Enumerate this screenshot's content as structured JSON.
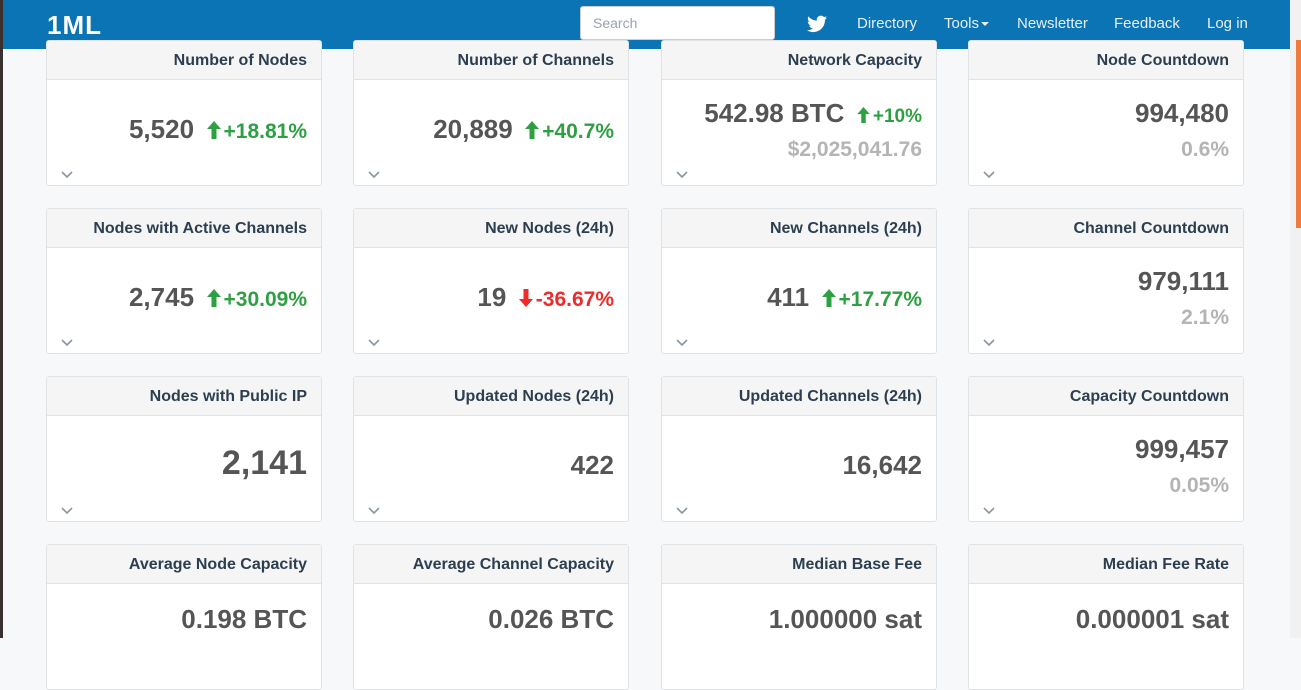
{
  "nav": {
    "brand": "1ML",
    "search_placeholder": "Search",
    "links": {
      "directory": "Directory",
      "tools": "Tools",
      "newsletter": "Newsletter",
      "feedback": "Feedback",
      "login": "Log in"
    }
  },
  "colors": {
    "navbar": "#0a74b5",
    "up": "#2ea043",
    "down": "#ee2b2b",
    "muted": "#b4b4b4"
  },
  "cards": {
    "number_of_nodes": {
      "title": "Number of Nodes",
      "value": "5,520",
      "change": "+18.81%",
      "direction": "up"
    },
    "number_of_channels": {
      "title": "Number of Channels",
      "value": "20,889",
      "change": "+40.7%",
      "direction": "up"
    },
    "network_capacity": {
      "title": "Network Capacity",
      "value": "542.98 BTC",
      "change": "+10%",
      "direction": "up",
      "sub": "$2,025,041.76"
    },
    "node_countdown": {
      "title": "Node Countdown",
      "value": "994,480",
      "sub": "0.6%"
    },
    "nodes_active_channels": {
      "title": "Nodes with Active Channels",
      "value": "2,745",
      "change": "+30.09%",
      "direction": "up"
    },
    "new_nodes": {
      "title": "New Nodes (24h)",
      "value": "19",
      "change": "-36.67%",
      "direction": "down"
    },
    "new_channels": {
      "title": "New Channels (24h)",
      "value": "411",
      "change": "+17.77%",
      "direction": "up"
    },
    "channel_countdown": {
      "title": "Channel Countdown",
      "value": "979,111",
      "sub": "2.1%"
    },
    "nodes_public_ip": {
      "title": "Nodes with Public IP",
      "value": "2,141"
    },
    "updated_nodes": {
      "title": "Updated Nodes (24h)",
      "value": "422"
    },
    "updated_channels": {
      "title": "Updated Channels (24h)",
      "value": "16,642"
    },
    "capacity_countdown": {
      "title": "Capacity Countdown",
      "value": "999,457",
      "sub": "0.05%"
    },
    "avg_node_capacity": {
      "title": "Average Node Capacity",
      "value": "0.198 BTC"
    },
    "avg_channel_capacity": {
      "title": "Average Channel Capacity",
      "value": "0.026 BTC"
    },
    "median_base_fee": {
      "title": "Median Base Fee",
      "value": "1.000000 sat"
    },
    "median_fee_rate": {
      "title": "Median Fee Rate",
      "value": "0.000001 sat"
    }
  }
}
